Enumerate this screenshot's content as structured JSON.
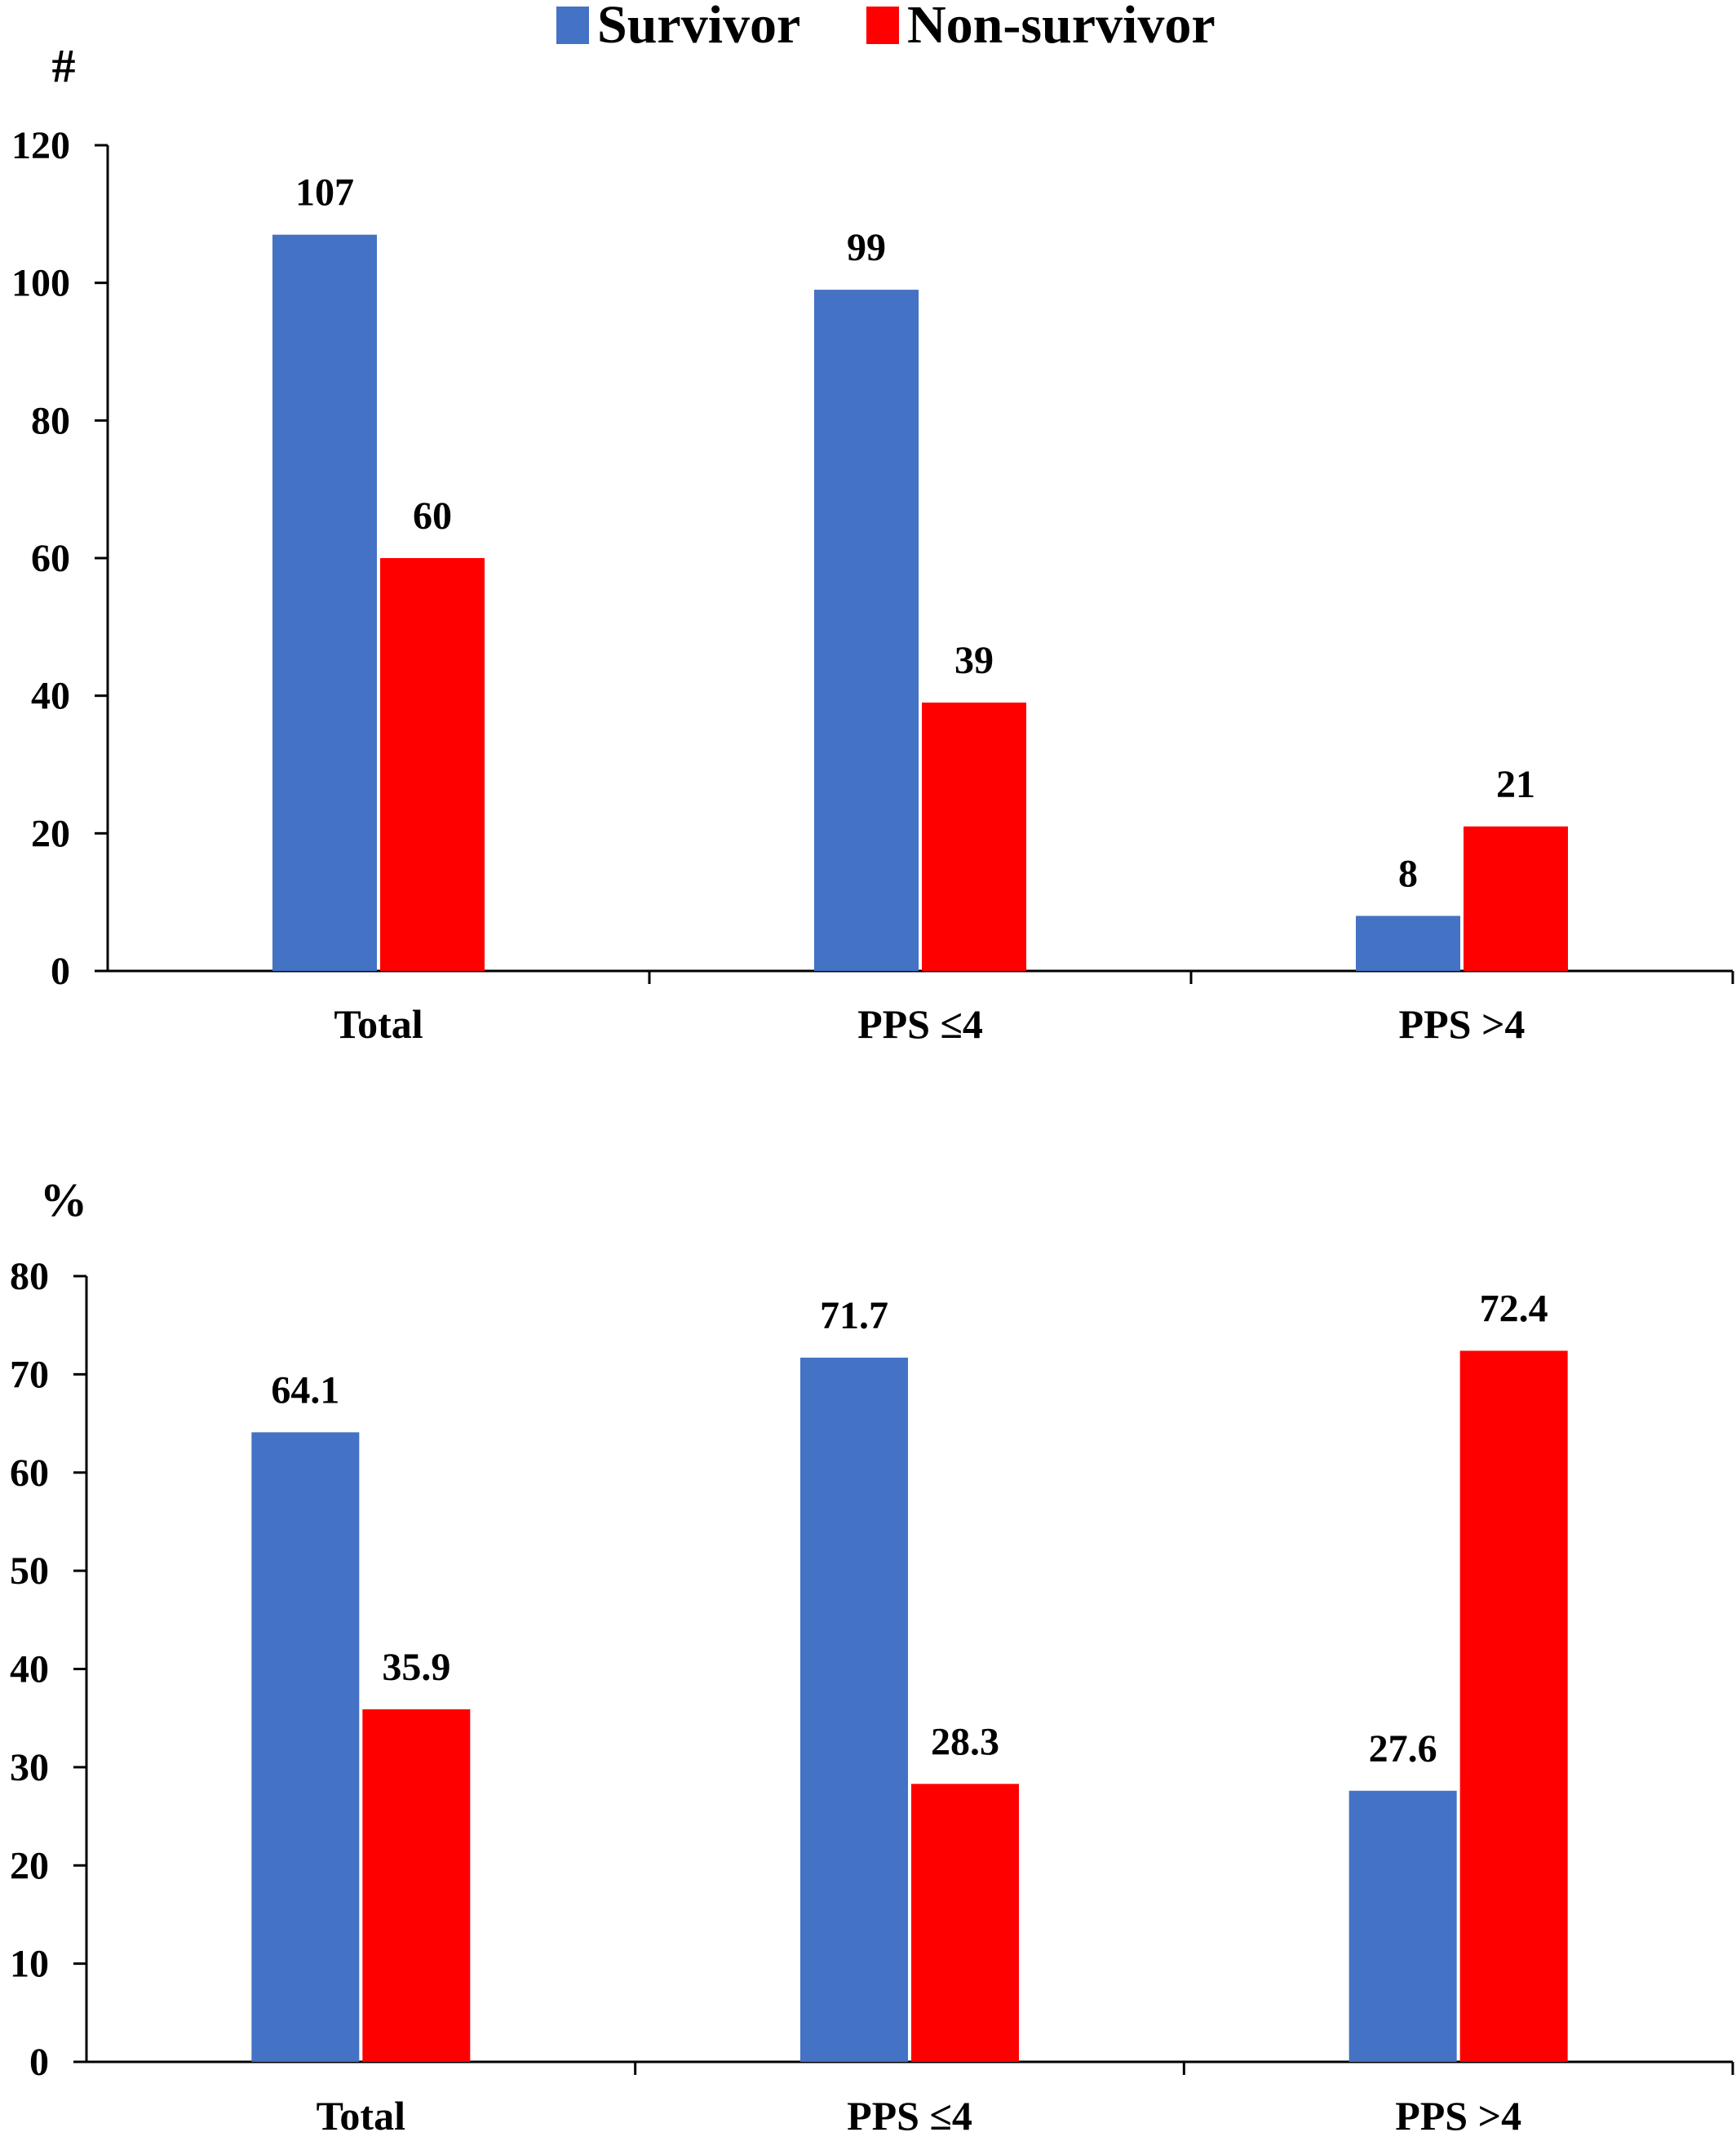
{
  "legend": {
    "items": [
      {
        "label": "Survivor",
        "color": "#4472C4"
      },
      {
        "label": "Non-survivor",
        "color": "#FF0000"
      }
    ]
  },
  "chart_data": [
    {
      "type": "bar",
      "ylabel": "#",
      "categories": [
        "Total",
        "PPS ≤4",
        "PPS >4"
      ],
      "series": [
        {
          "name": "Survivor",
          "color": "#4472C4",
          "values": [
            107,
            99,
            8
          ],
          "labels": [
            "107",
            "99",
            "8"
          ]
        },
        {
          "name": "Non-survivor",
          "color": "#FF0000",
          "values": [
            60,
            39,
            21
          ],
          "labels": [
            "60",
            "39",
            "21"
          ]
        }
      ],
      "ylim": [
        0,
        120
      ],
      "yticks": [
        0,
        20,
        40,
        60,
        80,
        100,
        120
      ],
      "grid": false,
      "legend_position": "top-center"
    },
    {
      "type": "bar",
      "ylabel": "%",
      "categories": [
        "Total",
        "PPS ≤4",
        "PPS >4"
      ],
      "series": [
        {
          "name": "Survivor",
          "color": "#4472C4",
          "values": [
            64.1,
            71.7,
            27.6
          ],
          "labels": [
            "64.1",
            "71.7",
            "27.6"
          ]
        },
        {
          "name": "Non-survivor",
          "color": "#FF0000",
          "values": [
            35.9,
            28.3,
            72.4
          ],
          "labels": [
            "35.9",
            "28.3",
            "72.4"
          ]
        }
      ],
      "ylim": [
        0,
        80
      ],
      "yticks": [
        0,
        10,
        20,
        30,
        40,
        50,
        60,
        70,
        80
      ],
      "grid": false
    }
  ]
}
